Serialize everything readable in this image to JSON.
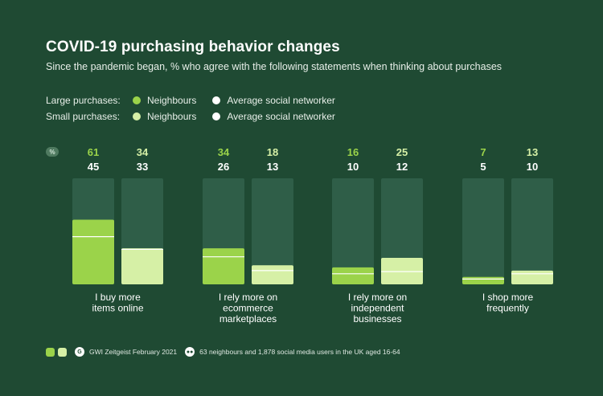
{
  "header": {
    "title": "COVID-19 purchasing behavior changes",
    "subtitle": "Since the pandemic began, % who agree with the following statements when thinking about purchases"
  },
  "legend": {
    "large_label": "Large purchases:",
    "small_label": "Small purchases:",
    "neighbours": "Neighbours",
    "average": "Average social networker"
  },
  "footer": {
    "source": "GWI Zeitgeist February 2021",
    "sample": "63 neighbours and 1,878 social media users in the UK aged 16-64"
  },
  "colors": {
    "background": "#1f4a33",
    "track": "#2f5e48",
    "large": "#9bd34a",
    "small": "#d6f0a6",
    "average_dot": "#ffffff"
  },
  "icons": {
    "percent": "%",
    "footer_badges": [
      "",
      ""
    ]
  },
  "chart_data": {
    "type": "bar",
    "ylim": [
      0,
      100
    ],
    "categories": [
      [
        "I buy more",
        "items online"
      ],
      [
        "I rely more on",
        "ecommerce",
        "marketplaces"
      ],
      [
        "I rely more on",
        "independent",
        "businesses"
      ],
      [
        "I shop more",
        "frequently"
      ]
    ],
    "series": [
      {
        "name": "Large purchases: Neighbours",
        "values": [
          61,
          34,
          16,
          7
        ]
      },
      {
        "name": "Large purchases: Average social networker",
        "values": [
          45,
          26,
          10,
          5
        ]
      },
      {
        "name": "Small purchases: Neighbours",
        "values": [
          34,
          18,
          25,
          13
        ]
      },
      {
        "name": "Small purchases: Average social networker",
        "values": [
          33,
          13,
          12,
          10
        ]
      }
    ]
  }
}
